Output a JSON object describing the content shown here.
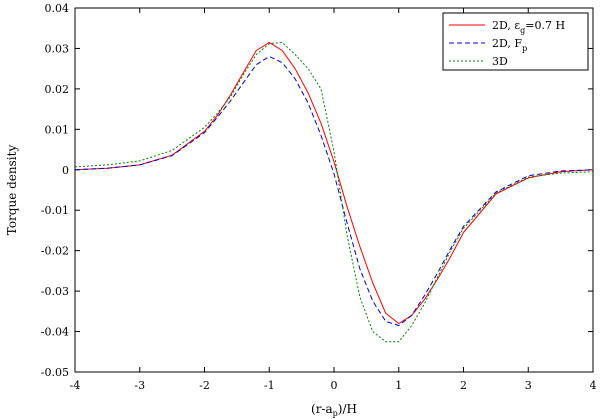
{
  "chart_data": {
    "type": "line",
    "xlabel": {
      "main": "(r-a",
      "sub": "p",
      "tail": ")/H"
    },
    "ylabel": "Torque density",
    "xlim": [
      -4,
      4
    ],
    "ylim": [
      -0.05,
      0.04
    ],
    "x_ticks": [
      -4,
      -3,
      -2,
      -1,
      0,
      1,
      2,
      3,
      4
    ],
    "x_tick_labels": [
      "-4",
      "-3",
      "-2",
      "-1",
      "0",
      "1",
      "2",
      "3",
      "4"
    ],
    "y_ticks": [
      -0.05,
      -0.04,
      -0.03,
      -0.02,
      -0.01,
      0,
      0.01,
      0.02,
      0.03,
      0.04
    ],
    "y_tick_labels": [
      "-0.05",
      "-0.04",
      "-0.03",
      "-0.02",
      "-0.01",
      "0",
      "0.01",
      "0.02",
      "0.03",
      "0.04"
    ],
    "grid": false,
    "legend_position": "top-right",
    "series": [
      {
        "name": "2D, ε",
        "name_sub": "g",
        "name_tail": "=0.7 H",
        "color": "#ff0000",
        "dash": "solid",
        "x": [
          -4,
          -3.5,
          -3,
          -2.5,
          -2,
          -1.8,
          -1.6,
          -1.4,
          -1.2,
          -1,
          -0.8,
          -0.6,
          -0.4,
          -0.2,
          0,
          0.2,
          0.4,
          0.6,
          0.8,
          1,
          1.2,
          1.4,
          1.6,
          1.8,
          2,
          2.5,
          3,
          3.5,
          4
        ],
        "y": [
          0,
          0.0004,
          0.0012,
          0.0036,
          0.0095,
          0.0135,
          0.0185,
          0.024,
          0.0295,
          0.0315,
          0.0295,
          0.025,
          0.019,
          0.0115,
          0.002,
          -0.009,
          -0.019,
          -0.028,
          -0.0355,
          -0.038,
          -0.036,
          -0.032,
          -0.027,
          -0.0215,
          -0.0155,
          -0.006,
          -0.002,
          -0.0005,
          0
        ]
      },
      {
        "name": "2D, F",
        "name_sub": "p",
        "name_tail": "",
        "color": "#0000cc",
        "dash": "5,3",
        "x": [
          -4,
          -3.5,
          -3,
          -2.5,
          -2,
          -1.8,
          -1.6,
          -1.4,
          -1.2,
          -1,
          -0.8,
          -0.6,
          -0.4,
          -0.2,
          0,
          0.2,
          0.4,
          0.6,
          0.8,
          1,
          1.2,
          1.4,
          1.6,
          1.8,
          2,
          2.5,
          3,
          3.5,
          4
        ],
        "y": [
          0,
          0.0004,
          0.0012,
          0.0035,
          0.0092,
          0.013,
          0.017,
          0.0215,
          0.026,
          0.028,
          0.0265,
          0.0225,
          0.0165,
          0.0085,
          -0.001,
          -0.013,
          -0.0245,
          -0.0325,
          -0.0375,
          -0.0385,
          -0.036,
          -0.031,
          -0.0255,
          -0.0195,
          -0.014,
          -0.0055,
          -0.0015,
          -0.0003,
          0
        ]
      },
      {
        "name": "3D",
        "name_sub": "",
        "name_tail": "",
        "color": "#008000",
        "dash": "2,2",
        "x": [
          -4,
          -3.5,
          -3,
          -2.5,
          -2,
          -1.8,
          -1.6,
          -1.4,
          -1.2,
          -1,
          -0.8,
          -0.6,
          -0.4,
          -0.2,
          0,
          0.2,
          0.4,
          0.6,
          0.8,
          1,
          1.2,
          1.4,
          1.6,
          1.8,
          2,
          2.5,
          3,
          3.5,
          4
        ],
        "y": [
          0.0007,
          0.0012,
          0.0022,
          0.0048,
          0.0105,
          0.014,
          0.018,
          0.0235,
          0.0285,
          0.0312,
          0.0315,
          0.0285,
          0.025,
          0.02,
          0.0045,
          -0.016,
          -0.0315,
          -0.04,
          -0.0425,
          -0.0425,
          -0.0385,
          -0.033,
          -0.0265,
          -0.02,
          -0.0145,
          -0.0058,
          -0.0018,
          -0.0008,
          -0.0005
        ]
      }
    ]
  }
}
